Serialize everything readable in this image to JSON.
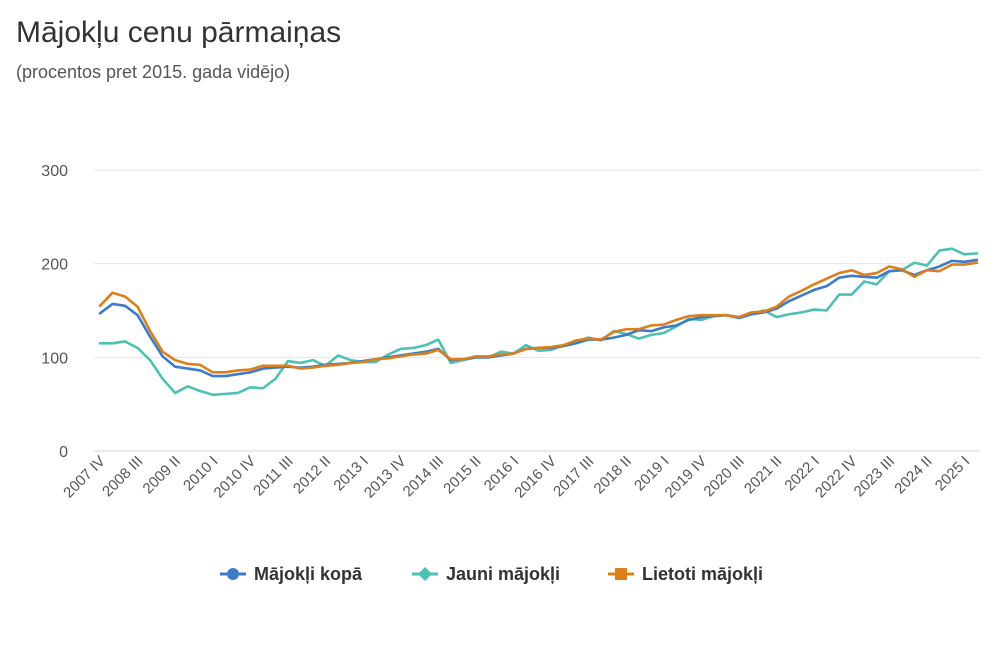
{
  "chart_data": {
    "type": "line",
    "title": "Mājokļu cenu pārmaiņas",
    "subtitle": "(procentos pret 2015. gada vidējo)",
    "xlabel": "",
    "ylabel": "",
    "ylim": [
      0,
      300
    ],
    "yticks": [
      0,
      100,
      200,
      300
    ],
    "grid": true,
    "legend_position": "bottom-center",
    "x_labels": [
      "2007 IV",
      "2008 III",
      "2009 II",
      "2010 I",
      "2010 IV",
      "2011 III",
      "2012 II",
      "2013 I",
      "2013 IV",
      "2014 III",
      "2015 II",
      "2016 I",
      "2016 IV",
      "2017 III",
      "2018 II",
      "2019 I",
      "2019 IV",
      "2020 III",
      "2021 II",
      "2022 I",
      "2022 IV",
      "2023 III",
      "2024 II",
      "2025 I"
    ],
    "series": [
      {
        "name": "Mājokļi kopā",
        "color": "#3d7bc7",
        "marker": "circle",
        "values": [
          147,
          157,
          155,
          145,
          122,
          101,
          90,
          88,
          86,
          80,
          80,
          82,
          84,
          88,
          89,
          90,
          89,
          90,
          92,
          93,
          94,
          96,
          98,
          100,
          102,
          104,
          106,
          109,
          97,
          98,
          100,
          100,
          102,
          104,
          109,
          110,
          110,
          112,
          115,
          119,
          119,
          121,
          124,
          129,
          128,
          132,
          134,
          140,
          143,
          144,
          145,
          142,
          146,
          148,
          152,
          160,
          166,
          172,
          176,
          185,
          187,
          186,
          185,
          192,
          193,
          188,
          193,
          197,
          203,
          202,
          204
        ]
      },
      {
        "name": "Jauni mājokļi",
        "color": "#4dc1b3",
        "marker": "diamond",
        "values": [
          115,
          115,
          117,
          110,
          97,
          77,
          62,
          69,
          64,
          60,
          61,
          62,
          68,
          67,
          77,
          96,
          94,
          97,
          91,
          102,
          97,
          95,
          95,
          103,
          109,
          110,
          113,
          119,
          94,
          97,
          100,
          100,
          106,
          104,
          113,
          107,
          108,
          113,
          117,
          121,
          118,
          128,
          125,
          120,
          124,
          126,
          133,
          141,
          140,
          144,
          145,
          143,
          147,
          150,
          143,
          146,
          148,
          151,
          150,
          167,
          167,
          181,
          178,
          192,
          193,
          201,
          198,
          214,
          216,
          210,
          211
        ]
      },
      {
        "name": "Lietoti mājokļi",
        "color": "#dc7f1b",
        "marker": "square",
        "values": [
          155,
          169,
          165,
          154,
          128,
          106,
          97,
          93,
          92,
          84,
          84,
          86,
          87,
          91,
          91,
          91,
          88,
          89,
          91,
          92,
          94,
          95,
          98,
          99,
          101,
          103,
          104,
          108,
          98,
          98,
          101,
          101,
          103,
          104,
          109,
          110,
          111,
          113,
          118,
          120,
          119,
          127,
          130,
          130,
          134,
          135,
          140,
          144,
          145,
          145,
          145,
          143,
          148,
          149,
          154,
          165,
          171,
          178,
          184,
          190,
          193,
          188,
          190,
          197,
          194,
          186,
          193,
          192,
          199,
          199,
          201
        ]
      }
    ]
  }
}
